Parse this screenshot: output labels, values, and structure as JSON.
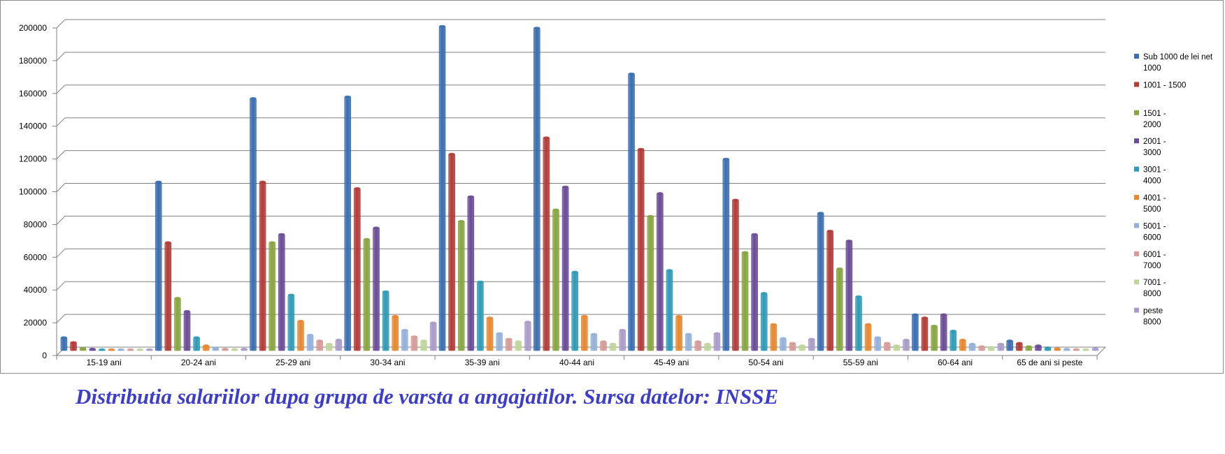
{
  "caption": "Distributia salariilor dupa grupa de varsta a angajatilor. Sursa datelor: INSSE",
  "chart_data": {
    "type": "bar",
    "title": "",
    "xlabel": "",
    "ylabel": "",
    "ylim": [
      0,
      200000
    ],
    "yticks": [
      "0",
      "20000",
      "40000",
      "60000",
      "80000",
      "100000",
      "120000",
      "140000",
      "160000",
      "180000",
      "200000"
    ],
    "grid": true,
    "legend_position": "right",
    "categories": [
      "15-19 ani",
      "20-24 ani",
      "25-29 ani",
      "30-34 ani",
      "35-39 ani",
      "40-44 ani",
      "45-49 ani",
      "50-54 ani",
      "55-59 ani",
      "60-64 ani",
      "65 de ani si peste"
    ],
    "series": [
      {
        "name": "Sub 1000 de lei net 1000",
        "legend_lines": [
          "Sub 1000 de lei net",
          "1000"
        ],
        "color": "#3a6eb0",
        "values": [
          8000,
          103000,
          154000,
          155000,
          198000,
          197000,
          169000,
          117000,
          84000,
          22000,
          6000
        ]
      },
      {
        "name": "1001 - 1500",
        "legend_lines": [
          "1001 - 1500"
        ],
        "color": "#b23b38",
        "values": [
          5000,
          66000,
          103000,
          99000,
          120000,
          130000,
          123000,
          92000,
          73000,
          20000,
          4500
        ]
      },
      {
        "name": "1501 - 2000",
        "legend_lines": [
          "1501 -",
          "2000"
        ],
        "color": "#87a53f",
        "values": [
          1500,
          32000,
          66000,
          68000,
          79000,
          86000,
          82000,
          60000,
          50000,
          15000,
          2500
        ]
      },
      {
        "name": "2001 - 3000",
        "legend_lines": [
          "2001 -",
          "3000"
        ],
        "color": "#6a4b96",
        "values": [
          1000,
          24000,
          71000,
          75000,
          94000,
          100000,
          96000,
          71000,
          67000,
          22000,
          3000
        ]
      },
      {
        "name": "3001 - 4000",
        "legend_lines": [
          "3001 -",
          "4000"
        ],
        "color": "#2f9ab6",
        "values": [
          600,
          8000,
          34000,
          36000,
          42000,
          48000,
          49000,
          35000,
          33000,
          12000,
          1800
        ]
      },
      {
        "name": "4001 - 5000",
        "legend_lines": [
          "4001 -",
          "5000"
        ],
        "color": "#e7872f",
        "values": [
          300,
          3000,
          18000,
          21000,
          20000,
          21000,
          21000,
          16000,
          16000,
          6500,
          1200
        ]
      },
      {
        "name": "5001 - 6000",
        "legend_lines": [
          "5001 -",
          "6000"
        ],
        "color": "#95b0d8",
        "values": [
          200,
          1500,
          9500,
          12500,
          10500,
          10000,
          10000,
          7500,
          8000,
          4000,
          900
        ]
      },
      {
        "name": "6001 - 7000",
        "legend_lines": [
          "6001 -",
          "7000"
        ],
        "color": "#d69a97",
        "values": [
          150,
          1000,
          6000,
          8500,
          7000,
          5500,
          5500,
          4500,
          4500,
          2500,
          700
        ]
      },
      {
        "name": "7001 - 8000",
        "legend_lines": [
          "7001 -",
          "8000"
        ],
        "color": "#bfd59a",
        "values": [
          100,
          800,
          4000,
          6000,
          5500,
          4000,
          4000,
          3000,
          3000,
          2000,
          600
        ]
      },
      {
        "name": "peste 8000",
        "legend_lines": [
          "peste",
          "8000"
        ],
        "color": "#a99bc8",
        "values": [
          150,
          1000,
          6500,
          17000,
          17500,
          12500,
          10500,
          7000,
          6500,
          4000,
          1200
        ]
      }
    ]
  }
}
